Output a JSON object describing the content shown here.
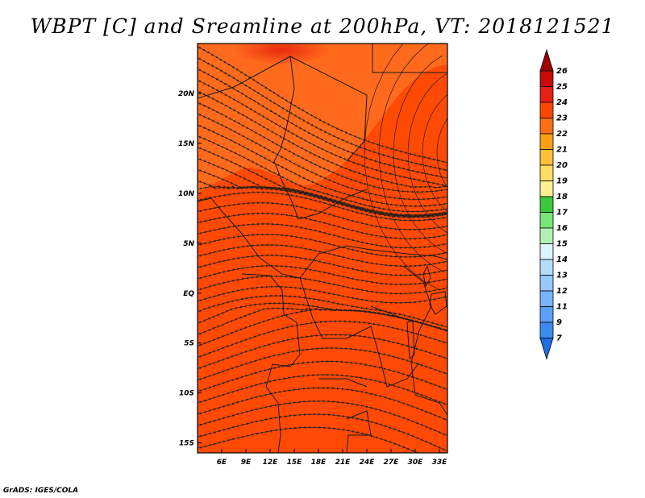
{
  "title": "WBPT [C] and Sreamline at 200hPa, VT: 2018121521",
  "footer": "GrADS: IGES/COLA",
  "map": {
    "lon_range": [
      3,
      34
    ],
    "lat_range": [
      -16,
      25
    ],
    "lon_ticks": [
      {
        "value": 6,
        "label": "6E"
      },
      {
        "value": 9,
        "label": "9E"
      },
      {
        "value": 12,
        "label": "12E"
      },
      {
        "value": 15,
        "label": "15E"
      },
      {
        "value": 18,
        "label": "18E"
      },
      {
        "value": 21,
        "label": "21E"
      },
      {
        "value": 24,
        "label": "24E"
      },
      {
        "value": 27,
        "label": "27E"
      },
      {
        "value": 30,
        "label": "30E"
      },
      {
        "value": 33,
        "label": "33E"
      }
    ],
    "lat_ticks": [
      {
        "value": 20,
        "label": "20N"
      },
      {
        "value": 15,
        "label": "15N"
      },
      {
        "value": 10,
        "label": "10N"
      },
      {
        "value": 5,
        "label": "5N"
      },
      {
        "value": 0,
        "label": "EQ"
      },
      {
        "value": -5,
        "label": "5S"
      },
      {
        "value": -10,
        "label": "10S"
      },
      {
        "value": -15,
        "label": "15S"
      }
    ],
    "field_color_base": "#ff4a06",
    "field_color_north": "#ff6a1c",
    "field_color_peak": "#f02a10"
  },
  "colorbar": {
    "levels": [
      "7",
      "9",
      "11",
      "12",
      "13",
      "14",
      "15",
      "16",
      "17",
      "18",
      "19",
      "20",
      "21",
      "22",
      "23",
      "24",
      "25",
      "26"
    ],
    "colors": [
      "#1e6fe6",
      "#3c8cf0",
      "#5aa0f5",
      "#78b4f8",
      "#96c8fa",
      "#b4dcfc",
      "#dcf5ff",
      "#b4f0b4",
      "#78e678",
      "#3cc83c",
      "#fff096",
      "#ffdc64",
      "#ffbe3c",
      "#ffa014",
      "#ff6e14",
      "#ff4600",
      "#e61e14",
      "#c80a0a",
      "#a00000"
    ]
  }
}
